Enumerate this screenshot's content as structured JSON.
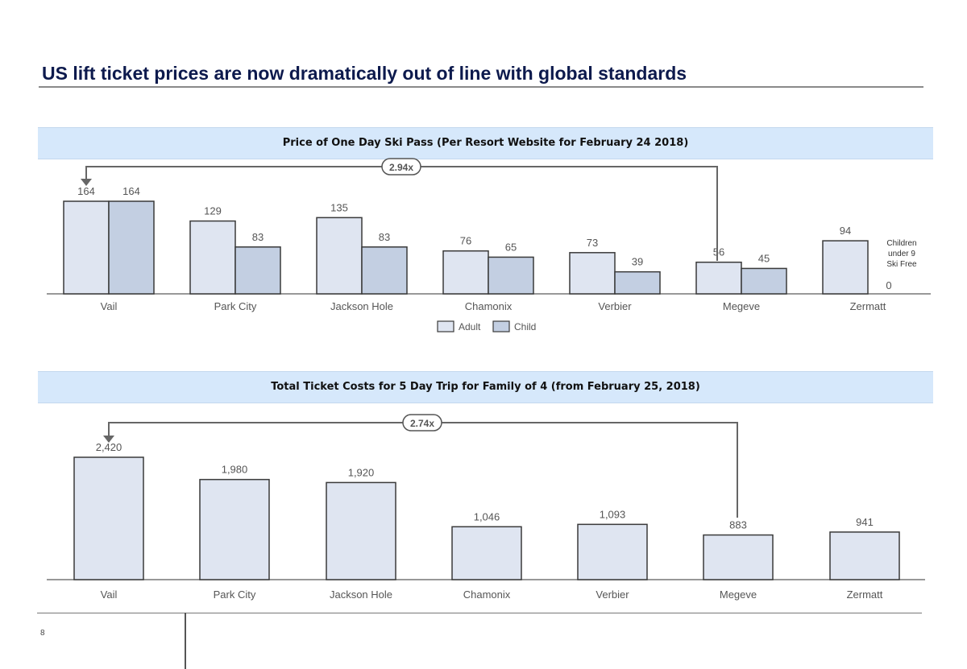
{
  "page": {
    "title": "US lift ticket prices are now dramatically out of line with global standards",
    "page_number": "8"
  },
  "colors": {
    "adult": "#dfe5f1",
    "child": "#c3cfe2",
    "bar_stroke": "#3a3a3a",
    "band": "#d6e8fb",
    "title": "#0d1a4d"
  },
  "chart_data": [
    {
      "type": "bar",
      "title": "Price of One Day Ski Pass (Per Resort Website for February 24 2018)",
      "categories": [
        "Vail",
        "Park City",
        "Jackson Hole",
        "Chamonix",
        "Verbier",
        "Megeve",
        "Zermatt"
      ],
      "series": [
        {
          "name": "Adult",
          "values": [
            164,
            129,
            135,
            76,
            73,
            56,
            94
          ]
        },
        {
          "name": "Child",
          "values": [
            164,
            83,
            83,
            65,
            39,
            45,
            0
          ]
        }
      ],
      "ylim": [
        0,
        180
      ],
      "grid": false,
      "legend": "bottom-center",
      "multiplier_label": "2.94x",
      "annotation": "Children under 9 Ski Free",
      "xlabel": "",
      "ylabel": ""
    },
    {
      "type": "bar",
      "title": "Total Ticket Costs for 5 Day Trip for Family of 4 (from February 25, 2018)",
      "categories": [
        "Vail",
        "Park City",
        "Jackson Hole",
        "Chamonix",
        "Verbier",
        "Megeve",
        "Zermatt"
      ],
      "series": [
        {
          "values": [
            2420,
            1980,
            1920,
            1046,
            1093,
            883,
            941
          ]
        }
      ],
      "value_labels": [
        "2,420",
        "1,980",
        "1,920",
        "1,046",
        "1,093",
        "883",
        "941"
      ],
      "ylim": [
        0,
        2600
      ],
      "grid": false,
      "legend": "none",
      "multiplier_label": "2.74x",
      "xlabel": "",
      "ylabel": ""
    }
  ]
}
